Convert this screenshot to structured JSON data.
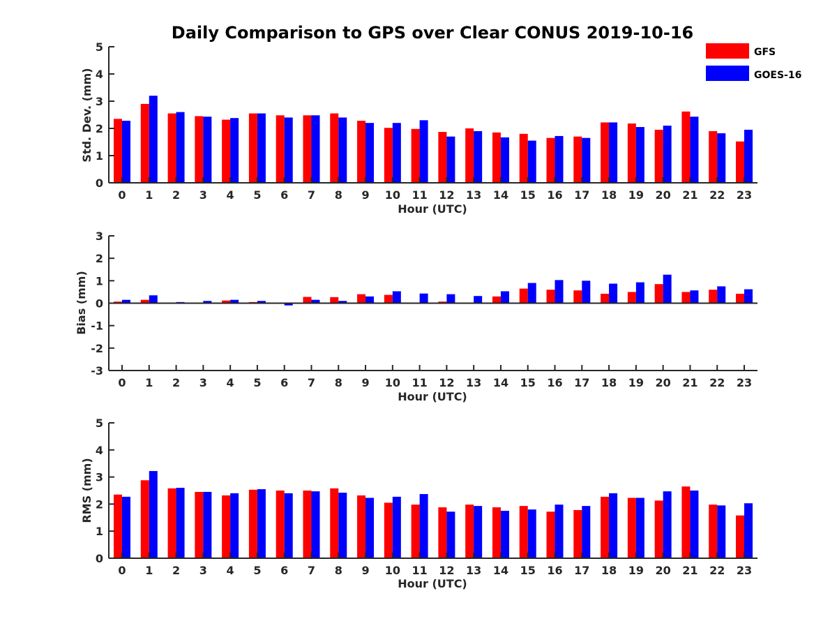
{
  "title": "Daily Comparison to GPS over Clear CONUS 2019-10-16",
  "colors": {
    "GFS": "#ff0000",
    "GOES-16": "#0000ff",
    "axis": "#262626"
  },
  "legend": [
    {
      "name": "GFS",
      "color": "#ff0000"
    },
    {
      "name": "GOES-16",
      "color": "#0000ff"
    }
  ],
  "chart_data": [
    {
      "type": "bar",
      "title": "Daily Comparison to GPS over Clear CONUS 2019-10-16",
      "xlabel": "Hour (UTC)",
      "ylabel": "Std. Dev. (mm)",
      "ylim": [
        0,
        5
      ],
      "yticks": [
        0,
        1,
        2,
        3,
        4,
        5
      ],
      "categories": [
        "0",
        "1",
        "2",
        "3",
        "4",
        "5",
        "6",
        "7",
        "8",
        "9",
        "10",
        "11",
        "12",
        "13",
        "14",
        "15",
        "16",
        "17",
        "18",
        "19",
        "20",
        "21",
        "22",
        "23"
      ],
      "series": [
        {
          "name": "GFS",
          "values": [
            2.35,
            2.9,
            2.55,
            2.45,
            2.32,
            2.55,
            2.48,
            2.48,
            2.55,
            2.28,
            2.02,
            1.98,
            1.87,
            2.0,
            1.85,
            1.8,
            1.65,
            1.7,
            2.22,
            2.18,
            1.95,
            2.62,
            1.9,
            1.52
          ]
        },
        {
          "name": "GOES-16",
          "values": [
            2.28,
            3.2,
            2.6,
            2.43,
            2.38,
            2.55,
            2.4,
            2.48,
            2.4,
            2.2,
            2.2,
            2.3,
            1.7,
            1.9,
            1.67,
            1.55,
            1.72,
            1.65,
            2.22,
            2.05,
            2.1,
            2.43,
            1.82,
            1.95
          ]
        }
      ]
    },
    {
      "type": "bar",
      "xlabel": "Hour (UTC)",
      "ylabel": "Bias (mm)",
      "ylim": [
        -3,
        3
      ],
      "yticks": [
        -3,
        -2,
        -1,
        0,
        1,
        2,
        3
      ],
      "categories": [
        "0",
        "1",
        "2",
        "3",
        "4",
        "5",
        "6",
        "7",
        "8",
        "9",
        "10",
        "11",
        "12",
        "13",
        "14",
        "15",
        "16",
        "17",
        "18",
        "19",
        "20",
        "21",
        "22",
        "23"
      ],
      "series": [
        {
          "name": "GFS",
          "values": [
            0.07,
            0.15,
            0.02,
            0.02,
            0.12,
            0.05,
            0.0,
            0.28,
            0.27,
            0.4,
            0.37,
            0.0,
            0.07,
            0.0,
            0.3,
            0.65,
            0.6,
            0.57,
            0.42,
            0.5,
            0.85,
            0.5,
            0.6,
            0.42
          ]
        },
        {
          "name": "GOES-16",
          "values": [
            0.15,
            0.35,
            0.05,
            0.1,
            0.15,
            0.1,
            -0.1,
            0.15,
            0.1,
            0.3,
            0.53,
            0.43,
            0.4,
            0.32,
            0.53,
            0.9,
            1.03,
            1.0,
            0.87,
            0.93,
            1.27,
            0.57,
            0.75,
            0.62
          ]
        }
      ]
    },
    {
      "type": "bar",
      "xlabel": "Hour (UTC)",
      "ylabel": "RMS (mm)",
      "ylim": [
        0,
        5
      ],
      "yticks": [
        0,
        1,
        2,
        3,
        4,
        5
      ],
      "categories": [
        "0",
        "1",
        "2",
        "3",
        "4",
        "5",
        "6",
        "7",
        "8",
        "9",
        "10",
        "11",
        "12",
        "13",
        "14",
        "15",
        "16",
        "17",
        "18",
        "19",
        "20",
        "21",
        "22",
        "23"
      ],
      "series": [
        {
          "name": "GFS",
          "values": [
            2.35,
            2.88,
            2.58,
            2.45,
            2.32,
            2.53,
            2.5,
            2.5,
            2.58,
            2.32,
            2.05,
            1.98,
            1.88,
            1.98,
            1.88,
            1.93,
            1.72,
            1.78,
            2.27,
            2.23,
            2.13,
            2.65,
            1.98,
            1.58
          ]
        },
        {
          "name": "GOES-16",
          "values": [
            2.27,
            3.22,
            2.6,
            2.45,
            2.4,
            2.55,
            2.4,
            2.47,
            2.42,
            2.23,
            2.27,
            2.37,
            1.72,
            1.93,
            1.75,
            1.8,
            1.98,
            1.93,
            2.4,
            2.23,
            2.47,
            2.5,
            1.95,
            2.03
          ]
        }
      ]
    }
  ]
}
